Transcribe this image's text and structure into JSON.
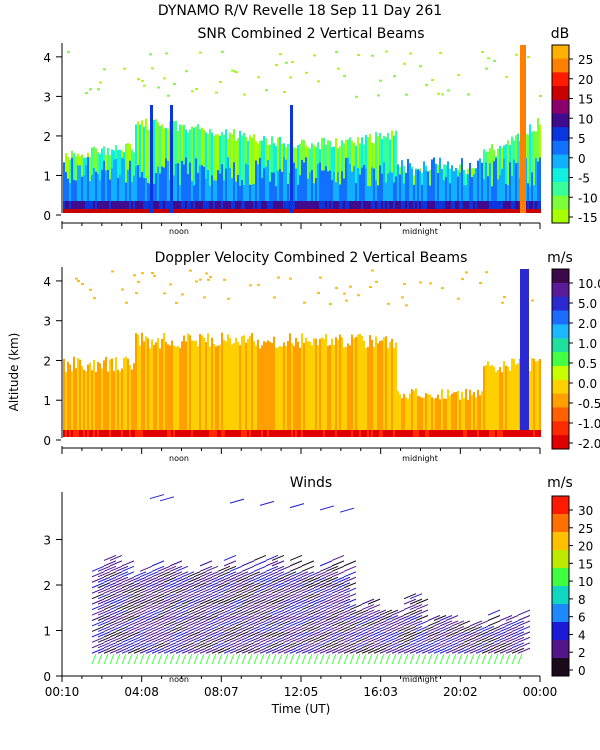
{
  "header": {
    "title": "DYNAMO R/V Revelle  18 Sep 11 Day 261"
  },
  "chart_data": [
    {
      "type": "heatmap",
      "title": "SNR Combined 2 Vertical Beams",
      "ylabel": "",
      "ylim": [
        0,
        4.3
      ],
      "yticks": [
        "0",
        "1",
        "2",
        "3",
        "4"
      ],
      "xmarks": [
        "noon",
        "midnight"
      ],
      "colorbar": {
        "unit": "dB",
        "labels": [
          "25",
          "20",
          "15",
          "10",
          "5",
          "0",
          "-5",
          "-10",
          "-15"
        ],
        "colors": [
          "#ffb000",
          "#ff8000",
          "#ff1a00",
          "#c80000",
          "#8c006e",
          "#3f0c8f",
          "#0a36e0",
          "#1170ff",
          "#11b0ff",
          "#0ff0e0",
          "#39ff9a",
          "#7cff3a",
          "#a8ff00"
        ]
      }
    },
    {
      "type": "heatmap",
      "title": "Doppler Velocity Combined 2 Vertical Beams",
      "ylabel": "Altitude (km)",
      "ylim": [
        0,
        4.3
      ],
      "yticks": [
        "0",
        "1",
        "2",
        "3",
        "4"
      ],
      "xmarks": [
        "noon",
        "midnight"
      ],
      "colorbar": {
        "unit": "m/s",
        "labels": [
          "10.0",
          "5.0",
          "2.0",
          "1.0",
          "0.5",
          "0.0",
          "-0.5",
          "-1.0",
          "-2.0"
        ],
        "colors": [
          "#3c0a4a",
          "#5a1a9a",
          "#2a2ad0",
          "#1c6cff",
          "#1ab8ff",
          "#20e0a0",
          "#44ff44",
          "#c8ff00",
          "#ffd000",
          "#ffa000",
          "#ff6000",
          "#ff2a00",
          "#e00000"
        ]
      }
    },
    {
      "type": "scatter",
      "title": "Winds",
      "xlabel": "Time (UT)",
      "ylabel": "",
      "ylim": [
        0,
        4
      ],
      "yticks": [
        "0",
        "1",
        "2",
        "3"
      ],
      "xticks": [
        "00:10",
        "04:08",
        "08:07",
        "12:05",
        "16:03",
        "20:02",
        "00:00"
      ],
      "xmarks": [
        "noon",
        "midnight"
      ],
      "colorbar": {
        "unit": "m/s",
        "labels": [
          "30",
          "25",
          "20",
          "15",
          "10",
          "8",
          "6",
          "4",
          "2",
          "0"
        ],
        "colors": [
          "#ff1a00",
          "#ff7000",
          "#ffc000",
          "#c0e800",
          "#40ff40",
          "#10d8c0",
          "#1e88ff",
          "#1a1ad8",
          "#55158a",
          "#1a0a1a"
        ]
      }
    }
  ]
}
